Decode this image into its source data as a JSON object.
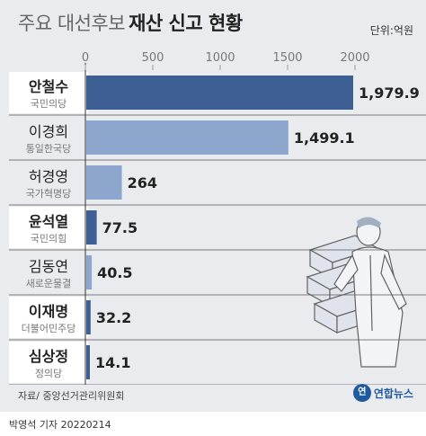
{
  "header": {
    "title_light": "주요 대선후보",
    "title_bold": "재산 신고 현황",
    "unit": "단위:억원"
  },
  "footer": {
    "source": "자료/ 중앙선거관리위원회",
    "logo_mark": "연",
    "logo_text": "연합뉴스",
    "credit": "박영석 기자  20220214"
  },
  "colors": {
    "bar_dark": "#3d5f94",
    "bar_light": "#8ca6cd",
    "row_highlight": "#ffffff",
    "row_plain": "#e9ebee",
    "separator": "#555555"
  },
  "chart_data": {
    "type": "bar",
    "orientation": "horizontal",
    "xlim": [
      0,
      2000
    ],
    "ticks": [
      "0",
      "500",
      "1000",
      "1500",
      "2000"
    ],
    "tick_values": [
      0,
      500,
      1000,
      1500,
      2000
    ],
    "categories": [
      "안철수",
      "이경희",
      "허경영",
      "윤석열",
      "김동연",
      "이재명",
      "심상정"
    ],
    "parties": [
      "국민의당",
      "통일한국당",
      "국가혁명당",
      "국민의힘",
      "새로운물결",
      "더불어민주당",
      "정의당"
    ],
    "values": [
      1979.9,
      1499.1,
      264,
      77.5,
      40.5,
      32.2,
      14.1
    ],
    "value_labels": [
      "1,979.9",
      "1,499.1",
      "264",
      "77.5",
      "40.5",
      "32.2",
      "14.1"
    ],
    "bold_name": [
      true,
      false,
      false,
      true,
      false,
      true,
      true
    ],
    "highlight_row": [
      true,
      false,
      false,
      true,
      false,
      true,
      true
    ],
    "bar_style": [
      "dark",
      "light",
      "light",
      "dark",
      "light",
      "dark",
      "dark"
    ]
  }
}
